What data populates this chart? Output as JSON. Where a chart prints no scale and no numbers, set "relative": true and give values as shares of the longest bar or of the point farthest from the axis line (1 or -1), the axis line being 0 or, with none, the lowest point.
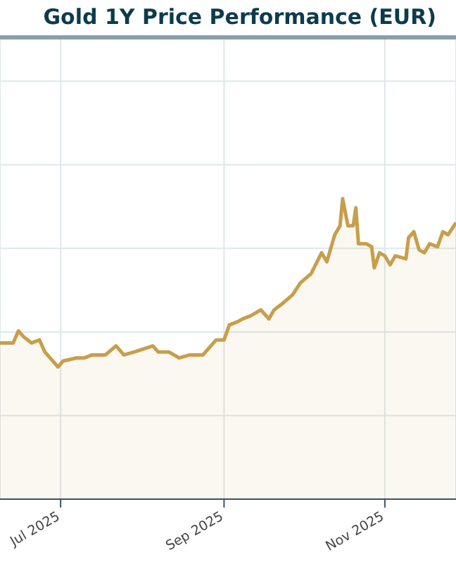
{
  "chart_data": {
    "type": "area",
    "title": "Gold 1Y Price Performance (EUR)",
    "relative": true,
    "grid": true,
    "legend": false,
    "x": [
      "2025-06-08",
      "2025-06-10",
      "2025-06-13",
      "2025-06-15",
      "2025-06-17",
      "2025-06-20",
      "2025-06-23",
      "2025-06-25",
      "2025-06-28",
      "2025-06-30",
      "2025-07-02",
      "2025-07-07",
      "2025-07-10",
      "2025-07-13",
      "2025-07-18",
      "2025-07-22",
      "2025-07-25",
      "2025-07-29",
      "2025-08-05",
      "2025-08-07",
      "2025-08-11",
      "2025-08-15",
      "2025-08-19",
      "2025-08-24",
      "2025-08-29",
      "2025-09-01",
      "2025-09-03",
      "2025-09-06",
      "2025-09-08",
      "2025-09-11",
      "2025-09-15",
      "2025-09-18",
      "2025-09-20",
      "2025-09-23",
      "2025-09-27",
      "2025-09-30",
      "2025-10-04",
      "2025-10-08",
      "2025-10-10",
      "2025-10-13",
      "2025-10-15",
      "2025-10-16",
      "2025-10-18",
      "2025-10-20",
      "2025-10-21",
      "2025-10-22",
      "2025-10-25",
      "2025-10-27",
      "2025-10-28",
      "2025-10-30",
      "2025-11-01",
      "2025-11-03",
      "2025-11-05",
      "2025-11-09",
      "2025-11-10",
      "2025-11-12",
      "2025-11-14",
      "2025-11-16",
      "2025-11-18",
      "2025-11-21",
      "2025-11-23",
      "2025-11-25",
      "2025-11-28"
    ],
    "series": [
      {
        "color": "#c79e4b",
        "values": [
          0.52,
          0.52,
          0.52,
          0.56,
          0.54,
          0.52,
          0.53,
          0.49,
          0.46,
          0.44,
          0.46,
          0.47,
          0.47,
          0.48,
          0.48,
          0.51,
          0.48,
          0.49,
          0.51,
          0.49,
          0.49,
          0.47,
          0.48,
          0.48,
          0.53,
          0.53,
          0.58,
          0.59,
          0.6,
          0.61,
          0.63,
          0.6,
          0.63,
          0.65,
          0.68,
          0.72,
          0.75,
          0.82,
          0.79,
          0.88,
          0.91,
          1,
          0.91,
          0.91,
          0.97,
          0.85,
          0.85,
          0.84,
          0.77,
          0.82,
          0.81,
          0.78,
          0.81,
          0.8,
          0.87,
          0.89,
          0.83,
          0.82,
          0.85,
          0.84,
          0.89,
          0.88,
          0.92
        ]
      }
    ],
    "xlim": [
      "2025-06-08",
      "2025-11-28"
    ],
    "xticks": [
      {
        "value": "2025-07-01",
        "label": "Jul 2025"
      },
      {
        "value": "2025-09-01",
        "label": "Sep 2025"
      },
      {
        "value": "2025-11-01",
        "label": "Nov 2025"
      }
    ]
  }
}
